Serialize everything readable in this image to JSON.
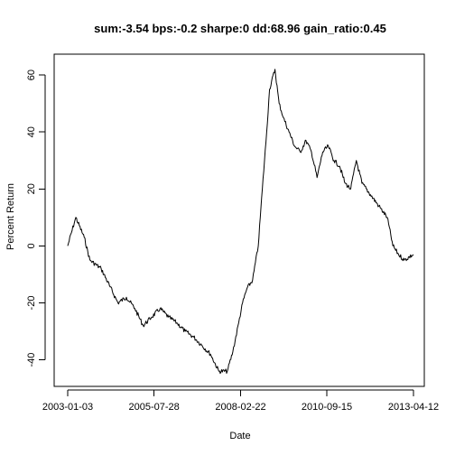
{
  "chart_data": {
    "type": "line",
    "title": "sum:-3.54 bps:-0.2 sharpe:0 dd:68.96 gain_ratio:0.45",
    "xlabel": "Date",
    "ylabel": "Percent Return",
    "x_ticks": [
      "2003-01-03",
      "2005-07-28",
      "2008-02-22",
      "2010-09-15",
      "2013-04-12"
    ],
    "y_ticks": [
      -40,
      -20,
      0,
      20,
      40,
      60
    ],
    "ylim": [
      -45,
      63
    ],
    "grid": false,
    "series": [
      {
        "x": [
          "2003-01-03",
          "2003-04-01",
          "2003-07-01",
          "2003-09-01",
          "2004-01-01",
          "2004-04-01",
          "2004-07-01",
          "2004-10-01",
          "2005-01-01",
          "2005-04-01",
          "2005-07-01",
          "2005-10-01",
          "2006-01-01",
          "2006-04-01",
          "2006-07-01",
          "2006-10-01",
          "2007-01-01",
          "2007-04-01",
          "2007-07-01",
          "2007-10-01",
          "2007-12-01",
          "2008-02-01",
          "2008-03-15",
          "2008-05-01",
          "2008-07-01",
          "2008-09-01",
          "2008-10-15",
          "2008-12-01",
          "2009-01-01",
          "2009-03-01",
          "2009-04-15",
          "2009-06-01",
          "2009-08-01",
          "2009-10-01",
          "2009-12-01",
          "2010-02-01",
          "2010-04-01",
          "2010-06-01",
          "2010-08-01",
          "2010-10-01",
          "2010-12-01",
          "2011-02-01",
          "2011-04-01",
          "2011-06-01",
          "2011-08-01",
          "2011-10-01",
          "2012-01-01",
          "2012-04-01",
          "2012-07-01",
          "2012-09-01",
          "2012-11-01",
          "2013-01-01",
          "2013-04-12"
        ],
        "y": [
          0,
          10,
          3,
          -5,
          -8,
          -14,
          -20,
          -18,
          -22,
          -28,
          -25,
          -22,
          -25,
          -27,
          -30,
          -32,
          -35,
          -38,
          -44,
          -44,
          -37,
          -27,
          -20,
          -15,
          -12,
          0,
          20,
          40,
          55,
          62,
          50,
          45,
          40,
          35,
          33,
          37,
          33,
          24,
          33,
          35,
          30,
          28,
          22,
          20,
          30,
          22,
          18,
          14,
          10,
          0,
          -3,
          -5,
          -3
        ]
      }
    ]
  }
}
